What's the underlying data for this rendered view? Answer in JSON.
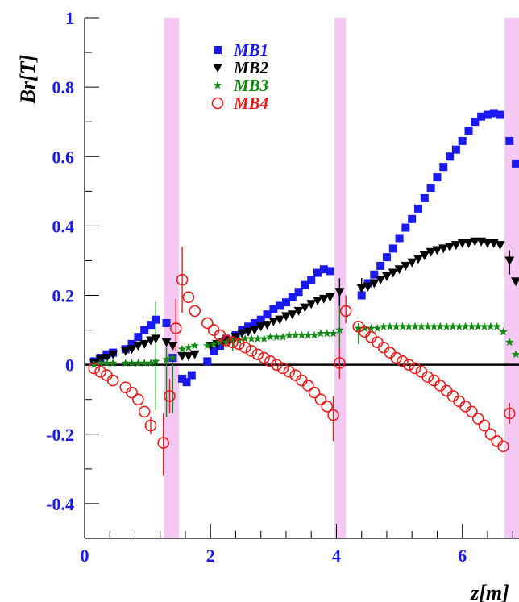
{
  "chart_data": {
    "type": "scatter",
    "xlabel": "z[m]",
    "ylabel": "Br[T]",
    "xlim": [
      0,
      6.9
    ],
    "ylim": [
      -0.5,
      1.0
    ],
    "x_ticks": [
      "0",
      "2",
      "4",
      "6"
    ],
    "y_ticks": [
      "1",
      "0.8",
      "0.6",
      "0.4",
      "0.2",
      "0",
      "-0.2",
      "-0.4"
    ],
    "legend_placement": "top-left",
    "shaded_bands": [
      [
        1.26,
        1.5
      ],
      [
        3.97,
        4.15
      ],
      [
        6.67,
        6.9
      ]
    ],
    "reference_line_y": 0,
    "colors": {
      "axis_text": "#1a1aee",
      "band": "#f6c8f4"
    },
    "series": [
      {
        "name": "MB1",
        "marker": "square",
        "color": "#1a1aee",
        "x": [
          0.15,
          0.25,
          0.35,
          0.45,
          0.65,
          0.75,
          0.85,
          0.95,
          1.05,
          1.13,
          1.3,
          1.4,
          1.55,
          1.62,
          1.7,
          1.95,
          2.05,
          2.15,
          2.25,
          2.4,
          2.5,
          2.6,
          2.7,
          2.8,
          2.9,
          3.0,
          3.1,
          3.2,
          3.3,
          3.4,
          3.5,
          3.6,
          3.7,
          3.8,
          3.9,
          4.4,
          4.5,
          4.6,
          4.7,
          4.8,
          4.9,
          5.0,
          5.1,
          5.2,
          5.3,
          5.4,
          5.5,
          5.6,
          5.7,
          5.8,
          5.9,
          6.0,
          6.1,
          6.2,
          6.3,
          6.4,
          6.5,
          6.6,
          6.75,
          6.85
        ],
        "y": [
          0.01,
          0.02,
          0.03,
          0.035,
          0.045,
          0.06,
          0.08,
          0.1,
          0.115,
          0.13,
          0.12,
          0.02,
          -0.04,
          -0.05,
          -0.03,
          0.01,
          0.04,
          0.055,
          0.075,
          0.085,
          0.1,
          0.11,
          0.12,
          0.13,
          0.145,
          0.16,
          0.17,
          0.18,
          0.195,
          0.21,
          0.23,
          0.245,
          0.265,
          0.275,
          0.27,
          0.2,
          0.235,
          0.26,
          0.285,
          0.31,
          0.335,
          0.365,
          0.395,
          0.42,
          0.45,
          0.48,
          0.51,
          0.54,
          0.57,
          0.6,
          0.62,
          0.645,
          0.675,
          0.7,
          0.715,
          0.72,
          0.725,
          0.72,
          0.645,
          0.58
        ]
      },
      {
        "name": "MB2",
        "marker": "triangle-down",
        "color": "#000000",
        "x": [
          0.15,
          0.25,
          0.35,
          0.45,
          0.65,
          0.75,
          0.85,
          0.95,
          1.05,
          1.13,
          1.3,
          1.4,
          1.55,
          1.65,
          1.75,
          2.0,
          2.1,
          2.2,
          2.3,
          2.4,
          2.5,
          2.6,
          2.7,
          2.8,
          2.9,
          3.0,
          3.1,
          3.2,
          3.3,
          3.4,
          3.5,
          3.6,
          3.7,
          3.8,
          3.9,
          4.05,
          4.4,
          4.5,
          4.6,
          4.7,
          4.8,
          4.9,
          5.0,
          5.1,
          5.2,
          5.3,
          5.4,
          5.5,
          5.6,
          5.7,
          5.8,
          5.9,
          6.0,
          6.1,
          6.2,
          6.3,
          6.4,
          6.5,
          6.6,
          6.75,
          6.85,
          6.93
        ],
        "y": [
          0.005,
          0.015,
          0.02,
          0.03,
          0.04,
          0.045,
          0.055,
          0.06,
          0.07,
          0.075,
          0.065,
          0.055,
          0.025,
          0.025,
          0.03,
          0.055,
          0.06,
          0.065,
          0.07,
          0.08,
          0.09,
          0.095,
          0.1,
          0.11,
          0.115,
          0.125,
          0.13,
          0.14,
          0.145,
          0.155,
          0.165,
          0.175,
          0.185,
          0.19,
          0.195,
          0.21,
          0.22,
          0.225,
          0.235,
          0.245,
          0.255,
          0.265,
          0.275,
          0.285,
          0.295,
          0.305,
          0.315,
          0.325,
          0.33,
          0.335,
          0.34,
          0.345,
          0.35,
          0.35,
          0.355,
          0.355,
          0.35,
          0.35,
          0.345,
          0.3,
          0.24,
          0.18
        ]
      },
      {
        "name": "MB3",
        "marker": "star",
        "color": "#108a10",
        "x": [
          0.15,
          0.25,
          0.35,
          0.45,
          0.65,
          0.75,
          0.85,
          0.95,
          1.05,
          1.13,
          1.3,
          1.4,
          1.55,
          1.65,
          1.75,
          1.95,
          2.05,
          2.15,
          2.25,
          2.35,
          2.45,
          2.55,
          2.65,
          2.75,
          2.85,
          2.95,
          3.05,
          3.15,
          3.25,
          3.35,
          3.45,
          3.55,
          3.65,
          3.75,
          3.85,
          3.95,
          4.05,
          4.35,
          4.45,
          4.55,
          4.65,
          4.75,
          4.85,
          4.95,
          5.05,
          5.15,
          5.25,
          5.35,
          5.45,
          5.55,
          5.65,
          5.75,
          5.85,
          5.95,
          6.05,
          6.15,
          6.25,
          6.35,
          6.45,
          6.55,
          6.65,
          6.75,
          6.85
        ],
        "y": [
          0.0,
          0.005,
          0.005,
          0.005,
          0.005,
          0.005,
          0.005,
          0.005,
          0.005,
          0.01,
          0.015,
          0.02,
          0.045,
          0.05,
          0.055,
          0.055,
          0.06,
          0.065,
          0.065,
          0.07,
          0.07,
          0.075,
          0.075,
          0.075,
          0.075,
          0.08,
          0.08,
          0.08,
          0.085,
          0.085,
          0.085,
          0.085,
          0.085,
          0.09,
          0.09,
          0.09,
          0.1,
          0.105,
          0.105,
          0.105,
          0.105,
          0.11,
          0.11,
          0.11,
          0.11,
          0.11,
          0.11,
          0.11,
          0.11,
          0.11,
          0.11,
          0.11,
          0.11,
          0.11,
          0.11,
          0.11,
          0.11,
          0.11,
          0.11,
          0.11,
          0.095,
          0.065,
          0.03
        ]
      },
      {
        "name": "MB4",
        "marker": "open-circle",
        "color": "#ee1a1a",
        "x": [
          0.15,
          0.25,
          0.35,
          0.45,
          0.65,
          0.75,
          0.85,
          0.95,
          1.05,
          1.25,
          1.35,
          1.45,
          1.55,
          1.65,
          1.75,
          1.95,
          2.05,
          2.15,
          2.25,
          2.35,
          2.45,
          2.55,
          2.65,
          2.75,
          2.85,
          2.95,
          3.05,
          3.15,
          3.25,
          3.35,
          3.45,
          3.55,
          3.65,
          3.75,
          3.85,
          3.95,
          4.05,
          4.15,
          4.35,
          4.45,
          4.55,
          4.65,
          4.75,
          4.85,
          4.95,
          5.05,
          5.15,
          5.25,
          5.35,
          5.45,
          5.55,
          5.65,
          5.75,
          5.85,
          5.95,
          6.05,
          6.15,
          6.25,
          6.35,
          6.45,
          6.55,
          6.65,
          6.75
        ],
        "y": [
          -0.01,
          -0.02,
          -0.03,
          -0.045,
          -0.065,
          -0.08,
          -0.1,
          -0.135,
          -0.175,
          -0.225,
          -0.09,
          0.105,
          0.245,
          0.195,
          0.155,
          0.12,
          0.1,
          0.085,
          0.07,
          0.065,
          0.06,
          0.05,
          0.04,
          0.03,
          0.02,
          0.01,
          0.0,
          -0.01,
          -0.02,
          -0.03,
          -0.045,
          -0.06,
          -0.08,
          -0.1,
          -0.12,
          -0.145,
          0.005,
          0.155,
          0.11,
          0.095,
          0.08,
          0.065,
          0.05,
          0.035,
          0.02,
          0.01,
          0.0,
          -0.01,
          -0.02,
          -0.035,
          -0.045,
          -0.06,
          -0.075,
          -0.09,
          -0.105,
          -0.12,
          -0.135,
          -0.155,
          -0.175,
          -0.2,
          -0.22,
          -0.235,
          -0.14
        ]
      }
    ],
    "error_bars": [
      {
        "series": "MB3",
        "x": 1.13,
        "low": -0.13,
        "high": 0.18
      },
      {
        "series": "MB3",
        "x": 1.3,
        "low": -0.15,
        "high": 0.05
      },
      {
        "series": "MB3",
        "x": 1.4,
        "low": -0.14,
        "high": 0.02
      },
      {
        "series": "MB3",
        "x": 2.35,
        "low": 0.04,
        "high": 0.09
      },
      {
        "series": "MB3",
        "x": 4.05,
        "low": 0.04,
        "high": 0.2
      },
      {
        "series": "MB3",
        "x": 4.35,
        "low": 0.06,
        "high": 0.12
      },
      {
        "series": "MB4",
        "x": 1.25,
        "low": -0.32,
        "high": -0.14
      },
      {
        "series": "MB4",
        "x": 1.35,
        "low": -0.14,
        "high": -0.04
      },
      {
        "series": "MB4",
        "x": 1.45,
        "low": 0.04,
        "high": 0.19
      },
      {
        "series": "MB4",
        "x": 1.55,
        "low": 0.15,
        "high": 0.34
      },
      {
        "series": "MB4",
        "x": 1.05,
        "low": -0.2,
        "high": -0.15
      },
      {
        "series": "MB4",
        "x": 3.95,
        "low": -0.22,
        "high": -0.09
      },
      {
        "series": "MB4",
        "x": 4.05,
        "low": -0.04,
        "high": 0.05
      },
      {
        "series": "MB4",
        "x": 4.15,
        "low": 0.12,
        "high": 0.2
      },
      {
        "series": "MB2",
        "x": 4.05,
        "low": 0.17,
        "high": 0.25
      },
      {
        "series": "MB2",
        "x": 4.4,
        "low": 0.19,
        "high": 0.25
      },
      {
        "series": "MB2",
        "x": 6.75,
        "low": 0.26,
        "high": 0.33
      },
      {
        "series": "MB4",
        "x": 6.75,
        "low": -0.17,
        "high": -0.11
      }
    ]
  }
}
